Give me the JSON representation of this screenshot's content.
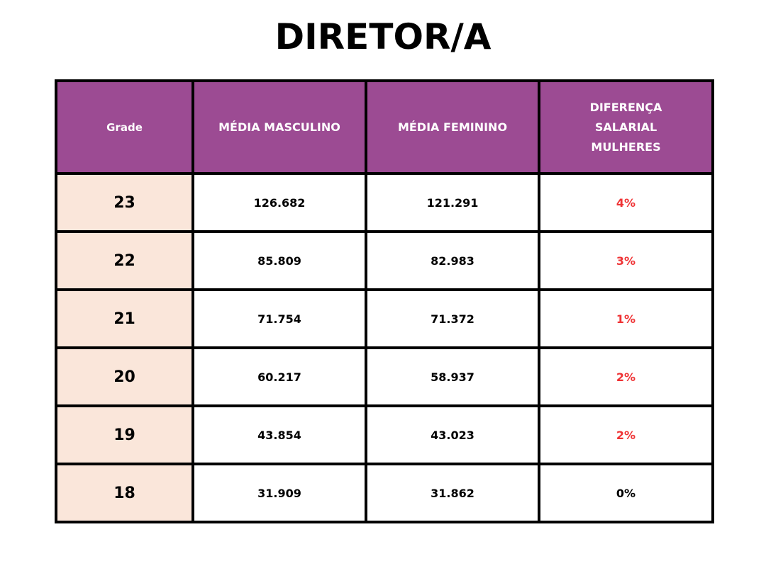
{
  "title": "DIRETOR/A",
  "table": {
    "headers": {
      "grade": "Grade",
      "media_masculino": "MÉDIA MASCULINO",
      "media_feminino": "MÉDIA FEMININO",
      "diferenca": [
        "DIFERENÇA",
        "SALARIAL",
        "MULHERES"
      ]
    },
    "rows": [
      {
        "grade": "23",
        "masculino": "126.682",
        "feminino": "121.291",
        "diferenca": "4%"
      },
      {
        "grade": "22",
        "masculino": "85.809",
        "feminino": "82.983",
        "diferenca": "3%"
      },
      {
        "grade": "21",
        "masculino": "71.754",
        "feminino": "71.372",
        "diferenca": "1%"
      },
      {
        "grade": "20",
        "masculino": "60.217",
        "feminino": "58.937",
        "diferenca": "2%"
      },
      {
        "grade": "19",
        "masculino": "43.854",
        "feminino": "43.023",
        "diferenca": "2%"
      },
      {
        "grade": "18",
        "masculino": "31.909",
        "feminino": "31.862",
        "diferenca": "0%"
      }
    ]
  },
  "colors": {
    "header_bg": "#9c4b93",
    "grade_bg": "#fae6da",
    "diff_positive": "#ef3234",
    "border": "#000000"
  }
}
